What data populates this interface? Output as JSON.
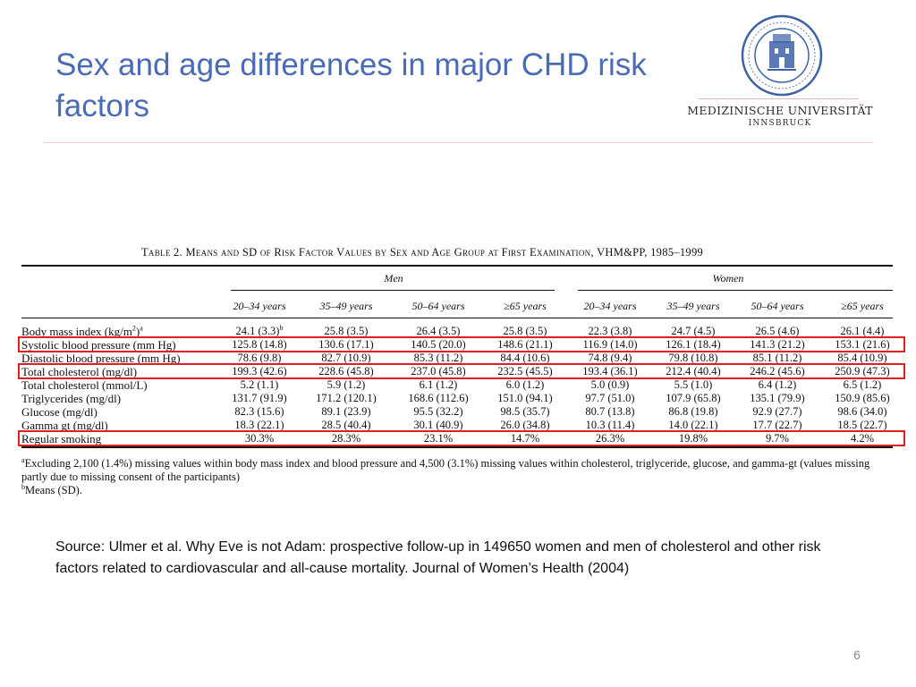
{
  "slide": {
    "title": "Sex and age differences in major CHD risk factors",
    "page_number": "6",
    "source": "Source: Ulmer et al. Why Eve is not Adam: prospective follow-up in 149650 women and men of cholesterol and other risk factors related to cardiovascular and all-cause mortality. Journal of Women’s Health (2004)"
  },
  "logo": {
    "name": "MEDIZINISCHE UNIVERSITÄT",
    "city": "INNSBRUCK",
    "seal_text": "MEDIZINISCHE UNIVERSITÄT INNSBRUCK",
    "seal_color": "#3d62a8"
  },
  "table": {
    "caption": "Table 2.   Means and SD of Risk Factor Values by Sex and Age Group at First Examination, VHM&PP, 1985–1999",
    "groups": [
      "Men",
      "Women"
    ],
    "age_headers": [
      "20–34 years",
      "35–49 years",
      "50–64 years",
      "≥65 years",
      "20–34 years",
      "35–49 years",
      "50–64 years",
      "≥65 years"
    ],
    "rows": [
      {
        "label": "Body mass index (kg/m",
        "label_sup": "2",
        "label_tail": ")",
        "label_note": "a",
        "values": [
          "24.1 (3.3)",
          "25.8 (3.5)",
          "26.4 (3.5)",
          "25.8 (3.5)",
          "22.3 (3.8)",
          "24.7 (4.5)",
          "26.5 (4.6)",
          "26.1 (4.4)"
        ],
        "first_value_note": "b"
      },
      {
        "label": "Systolic blood pressure (mm Hg)",
        "values": [
          "125.8 (14.8)",
          "130.6 (17.1)",
          "140.5 (20.0)",
          "148.6 (21.1)",
          "116.9 (14.0)",
          "126.1 (18.4)",
          "141.3 (21.2)",
          "153.1 (21.6)"
        ]
      },
      {
        "label": "Diastolic blood pressure (mm Hg)",
        "values": [
          "78.6 (9.8)",
          "82.7 (10.9)",
          "85.3 (11.2)",
          "84.4 (10.6)",
          "74.8 (9.4)",
          "79.8 (10.8)",
          "85.1 (11.2)",
          "85.4 (10.9)"
        ]
      },
      {
        "label": "Total cholesterol (mg/dl)",
        "values": [
          "199.3 (42.6)",
          "228.6 (45.8)",
          "237.0 (45.8)",
          "232.5 (45.5)",
          "193.4 (36.1)",
          "212.4 (40.4)",
          "246.2 (45.6)",
          "250.9 (47.3)"
        ]
      },
      {
        "label": "Total cholesterol (mmol/L)",
        "values": [
          "5.2 (1.1)",
          "5.9 (1.2)",
          "6.1 (1.2)",
          "6.0 (1.2)",
          "5.0 (0.9)",
          "5.5 (1.0)",
          "6.4 (1.2)",
          "6.5 (1.2)"
        ]
      },
      {
        "label": "Triglycerides (mg/dl)",
        "values": [
          "131.7 (91.9)",
          "171.2 (120.1)",
          "168.6 (112.6)",
          "151.0 (94.1)",
          "97.7 (51.0)",
          "107.9 (65.8)",
          "135.1 (79.9)",
          "150.9 (85.6)"
        ]
      },
      {
        "label": "Glucose (mg/dl)",
        "values": [
          "82.3 (15.6)",
          "89.1 (23.9)",
          "95.5 (32.2)",
          "98.5 (35.7)",
          "80.7 (13.8)",
          "86.8 (19.8)",
          "92.9 (27.7)",
          "98.6 (34.0)"
        ]
      },
      {
        "label": "Gamma gt (mg/dl)",
        "values": [
          "18.3 (22.1)",
          "28.5 (40.4)",
          "30.1 (40.9)",
          "26.0 (34.8)",
          "10.3 (11.4)",
          "14.0 (22.1)",
          "17.7 (22.7)",
          "18.5 (22.7)"
        ]
      },
      {
        "label": "Regular smoking",
        "values": [
          "30.3%",
          "28.3%",
          "23.1%",
          "14.7%",
          "26.3%",
          "19.8%",
          "9.7%",
          "4.2%"
        ]
      }
    ],
    "highlighted_rows": [
      "Systolic blood pressure (mm Hg)",
      "Total cholesterol (mg/dl)",
      "Regular smoking"
    ],
    "highlight_color": "#e02020",
    "footnote_a_mark": "a",
    "footnote_a": "Excluding 2,100 (1.4%) missing values within body mass index and blood pressure and 4,500 (3.1%) missing values within cholesterol, triglyceride, glucose, and gamma-gt (values missing partly due to missing consent of the participants)",
    "footnote_b_mark": "b",
    "footnote_b": "Means (SD)."
  }
}
